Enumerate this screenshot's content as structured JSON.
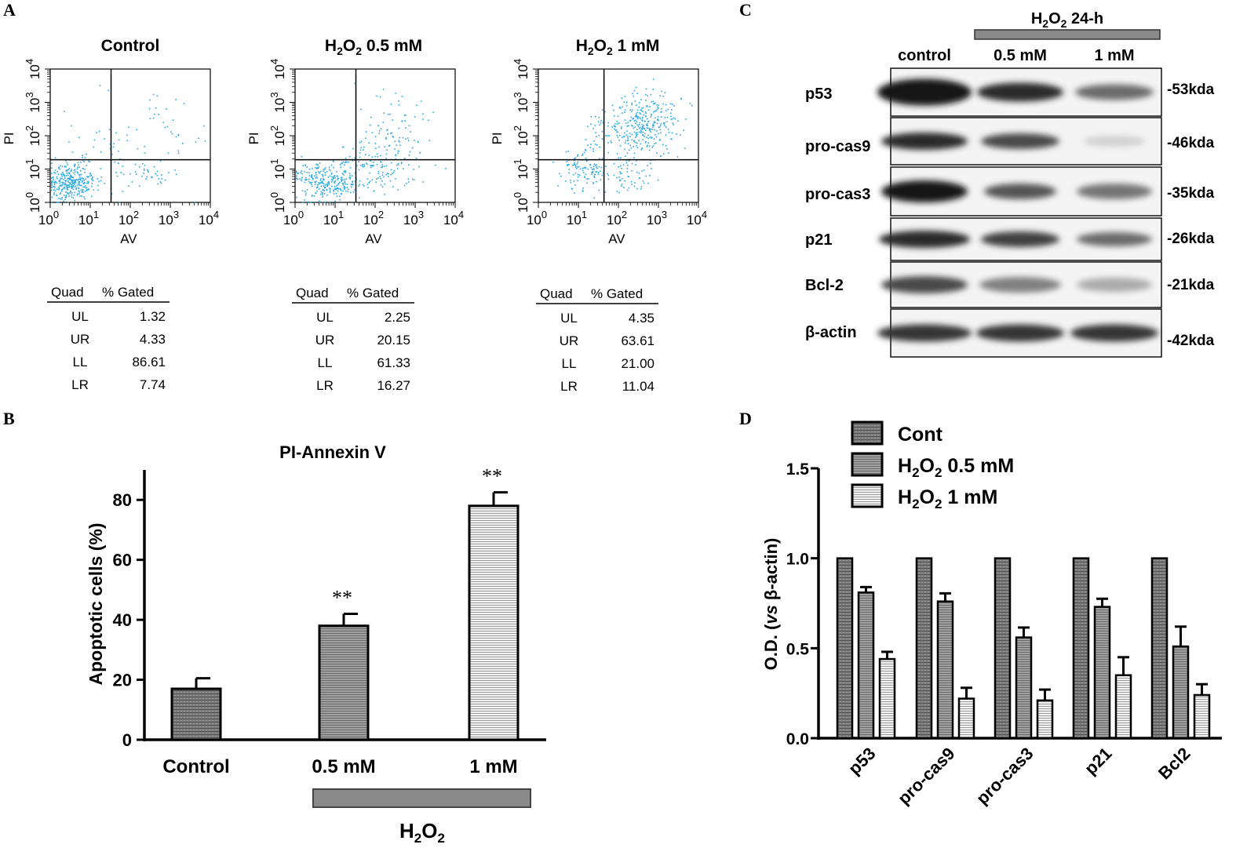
{
  "panel_labels": {
    "a": "A",
    "b": "B",
    "c": "C",
    "d": "D"
  },
  "colors": {
    "dots": "#2aa8e0",
    "dark_bar": "#707070",
    "mid_bar": "#9a9a9a",
    "light_bar": "#e6e6e6",
    "h2o2_bar": "#8a8a8a"
  },
  "flow": {
    "axis": {
      "x_label": "AV",
      "y_label": "PI",
      "tick_base": "10",
      "exponents": [
        "0",
        "1",
        "2",
        "3",
        "4"
      ]
    },
    "table_headers": [
      "Quad",
      "% Gated"
    ],
    "plots": [
      {
        "title_prefix": "",
        "title": "Control",
        "rows": [
          {
            "q": "UL",
            "v": "1.32"
          },
          {
            "q": "UR",
            "v": "4.33"
          },
          {
            "q": "LL",
            "v": "86.61"
          },
          {
            "q": "LR",
            "v": "7.74"
          }
        ]
      },
      {
        "title_prefix": "H2O2",
        "title": "0.5 mM",
        "rows": [
          {
            "q": "UL",
            "v": "2.25"
          },
          {
            "q": "UR",
            "v": "20.15"
          },
          {
            "q": "LL",
            "v": "61.33"
          },
          {
            "q": "LR",
            "v": "16.27"
          }
        ]
      },
      {
        "title_prefix": "H2O2",
        "title": "1 mM",
        "rows": [
          {
            "q": "UL",
            "v": "4.35"
          },
          {
            "q": "UR",
            "v": "63.61"
          },
          {
            "q": "LL",
            "v": "21.00"
          },
          {
            "q": "LR",
            "v": "11.04"
          }
        ]
      }
    ]
  },
  "chart_data": [
    {
      "id": "B",
      "type": "bar",
      "title": "PI-Annexin V",
      "ylabel": "Apoptotic cells (%)",
      "xlabel": "",
      "categories": [
        "Control",
        "0.5 mM",
        "1 mM"
      ],
      "values": [
        17,
        38,
        78
      ],
      "errors": [
        3.5,
        4,
        4.5
      ],
      "significance": [
        "",
        "**",
        "**"
      ],
      "ylim": [
        0,
        90
      ],
      "yticks": [
        0,
        20,
        40,
        60,
        80
      ],
      "treatment_label": "H2O2"
    },
    {
      "id": "D",
      "type": "bar",
      "title": "",
      "ylabel_prefix": "O.D. (",
      "ylabel_italic": "vs",
      "ylabel_suffix": " β-actin)",
      "categories": [
        "p53",
        "pro-cas9",
        "pro-cas3",
        "p21",
        "Bcl2"
      ],
      "series": [
        {
          "name": "Cont",
          "prefix": "",
          "values": [
            1.0,
            1.0,
            1.0,
            1.0,
            1.0
          ],
          "errors": [
            0,
            0,
            0,
            0,
            0
          ]
        },
        {
          "name": "0.5 mM",
          "prefix": "H2O2",
          "values": [
            0.81,
            0.76,
            0.56,
            0.73,
            0.51
          ],
          "errors": [
            0.03,
            0.045,
            0.055,
            0.045,
            0.11
          ]
        },
        {
          "name": "1 mM",
          "prefix": "H2O2",
          "values": [
            0.44,
            0.22,
            0.21,
            0.35,
            0.24
          ],
          "errors": [
            0.04,
            0.06,
            0.06,
            0.1,
            0.06
          ]
        }
      ],
      "ylim": [
        0,
        1.5
      ],
      "yticks": [
        "0.0",
        "0.5",
        "1.0",
        "1.5"
      ]
    }
  ],
  "western": {
    "treatment_header": "H2O2 24-h",
    "lanes": [
      "control",
      "0.5 mM",
      "1 mM"
    ],
    "bands": [
      {
        "protein": "p53",
        "size": "-53kda"
      },
      {
        "protein": "pro-cas9",
        "size": "-46kda"
      },
      {
        "protein": "pro-cas3",
        "size": "-35kda"
      },
      {
        "protein": "p21",
        "size": "-26kda"
      },
      {
        "protein": "Bcl-2",
        "size": "-21kda"
      },
      {
        "protein": "β-actin",
        "size": "-42kda"
      }
    ]
  }
}
